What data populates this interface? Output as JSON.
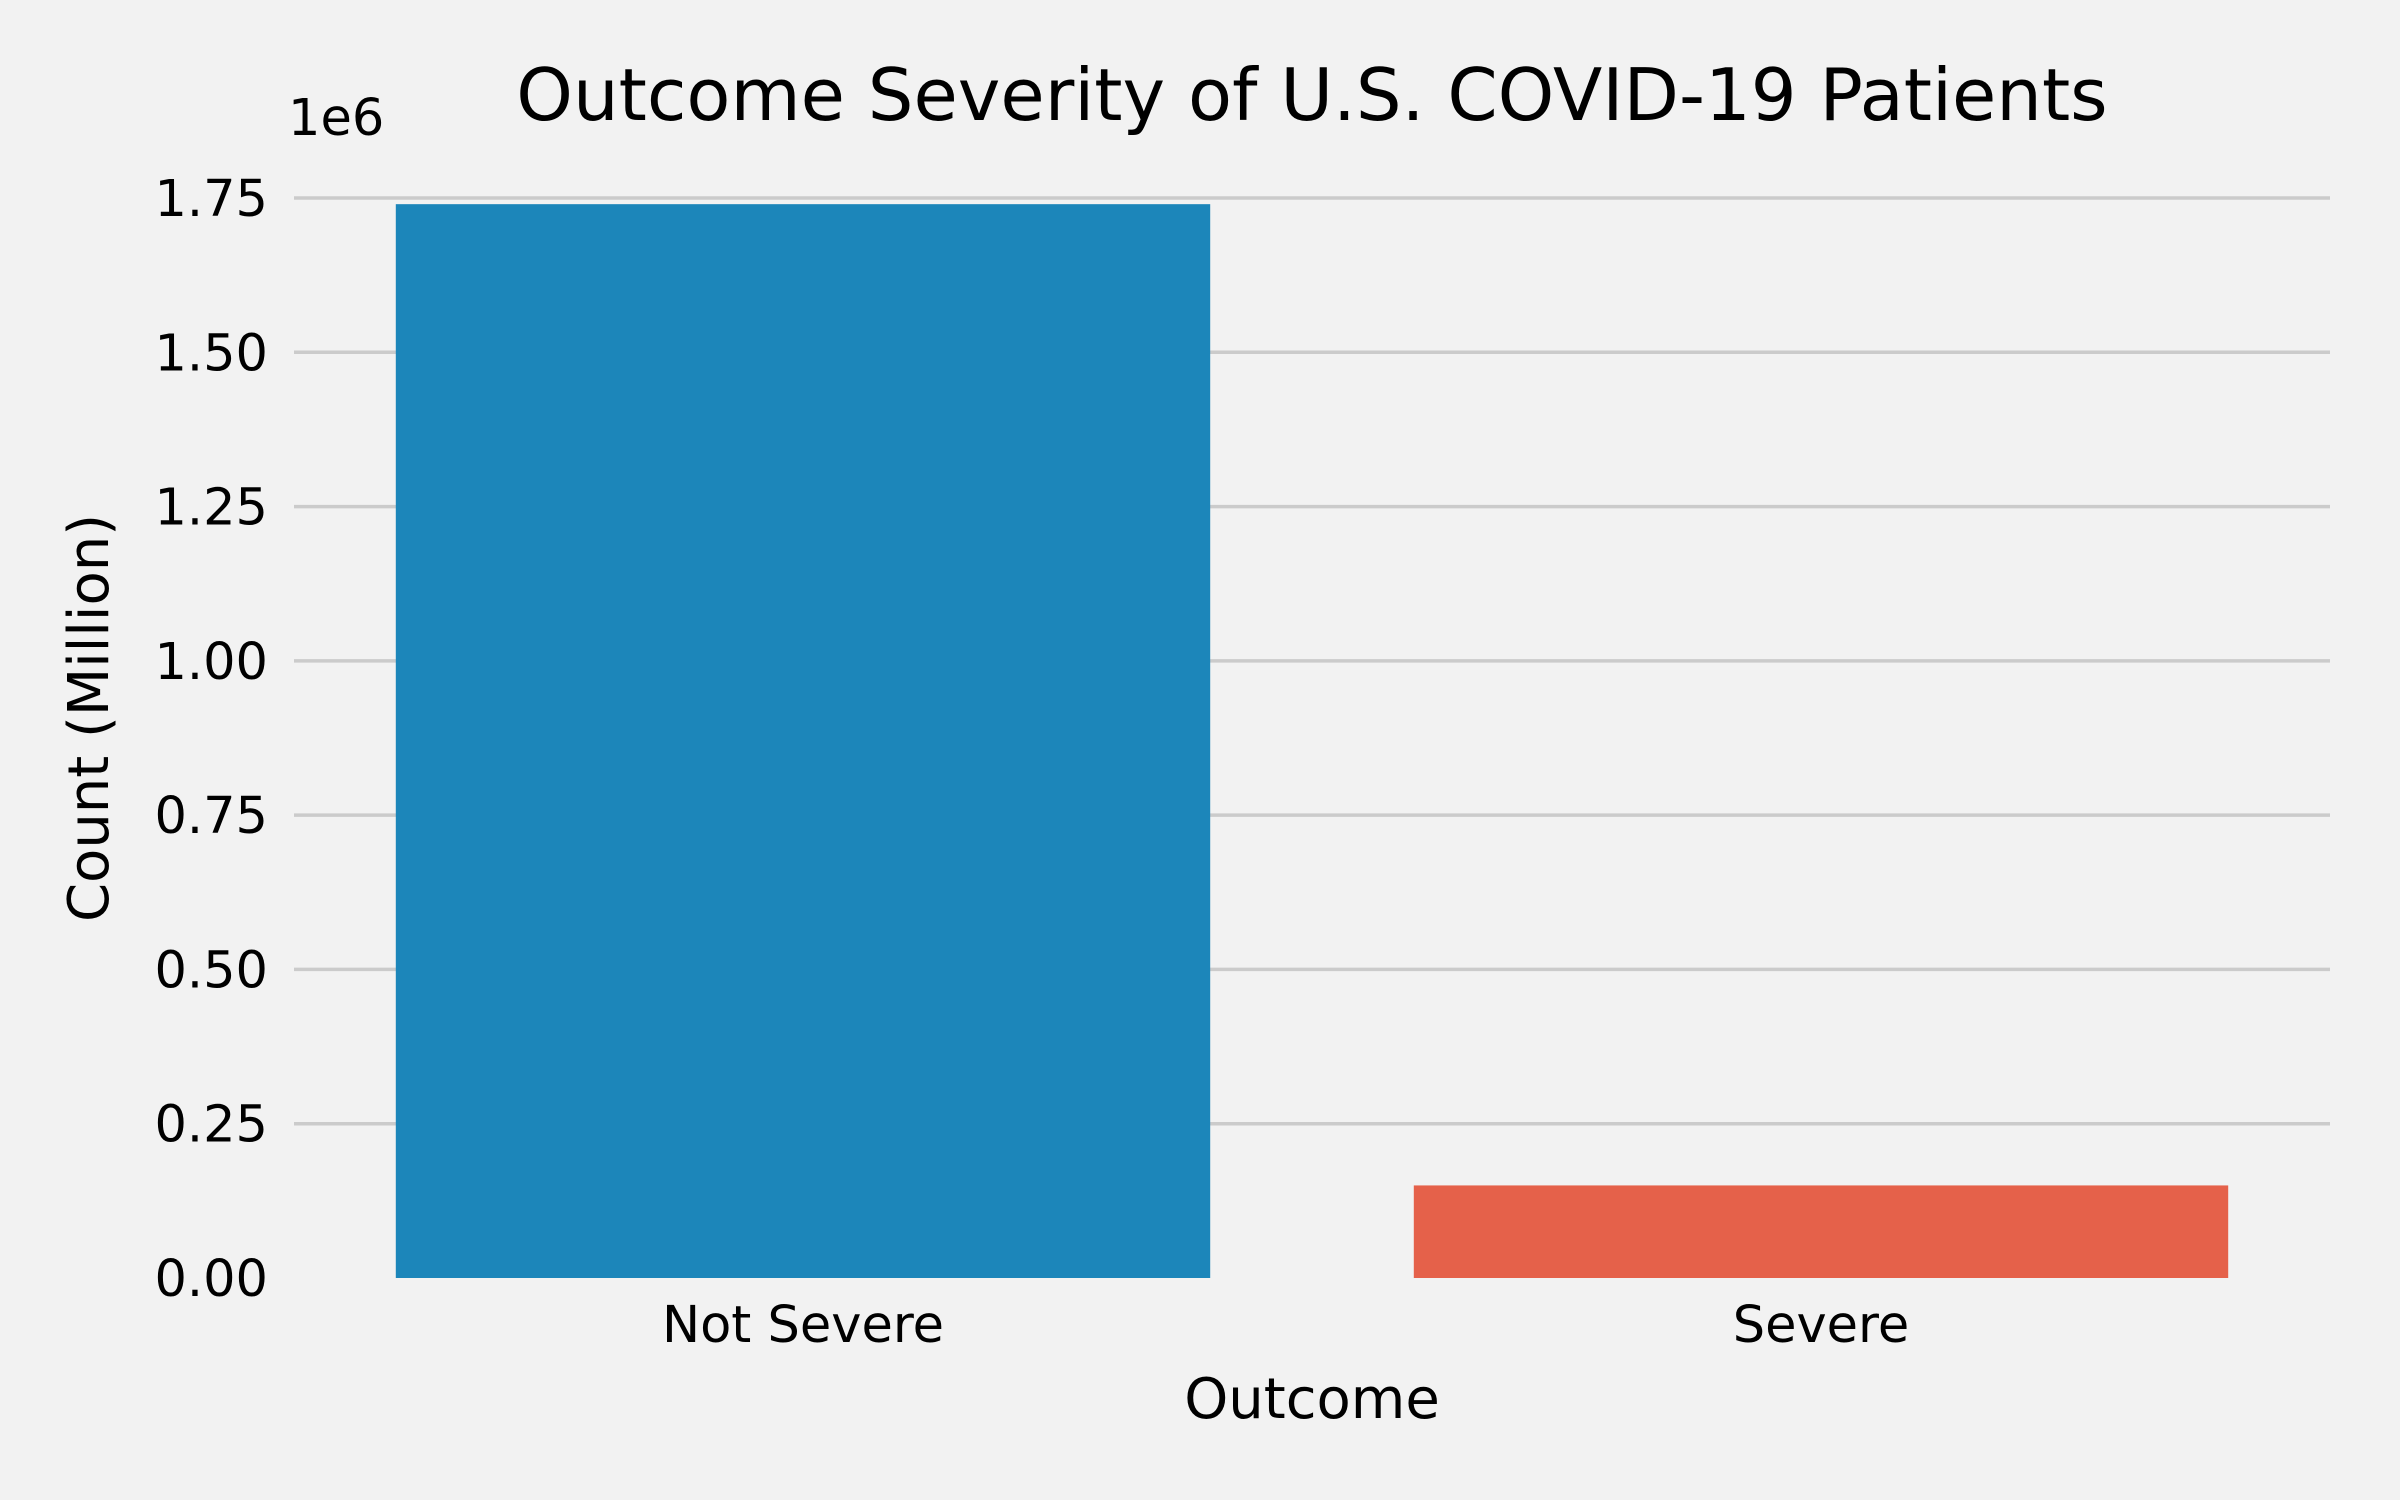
{
  "chart_data": {
    "type": "bar",
    "title": "Outcome Severity of U.S. COVID-19 Patients",
    "xlabel": "Outcome",
    "ylabel": "Count (Million)",
    "offset_text": "1e6",
    "categories": [
      "Not Severe",
      "Severe"
    ],
    "values": [
      1740000,
      150000
    ],
    "colors": [
      "#1c86ba",
      "#e5614a"
    ],
    "ylim": [
      0,
      1750000
    ],
    "yticks": [
      0,
      250000,
      500000,
      750000,
      1000000,
      1250000,
      1500000,
      1750000
    ],
    "ytick_labels": [
      "0.00",
      "0.25",
      "0.50",
      "0.75",
      "1.00",
      "1.25",
      "1.50",
      "1.75"
    ],
    "grid": "horizontal",
    "legend": "none"
  }
}
